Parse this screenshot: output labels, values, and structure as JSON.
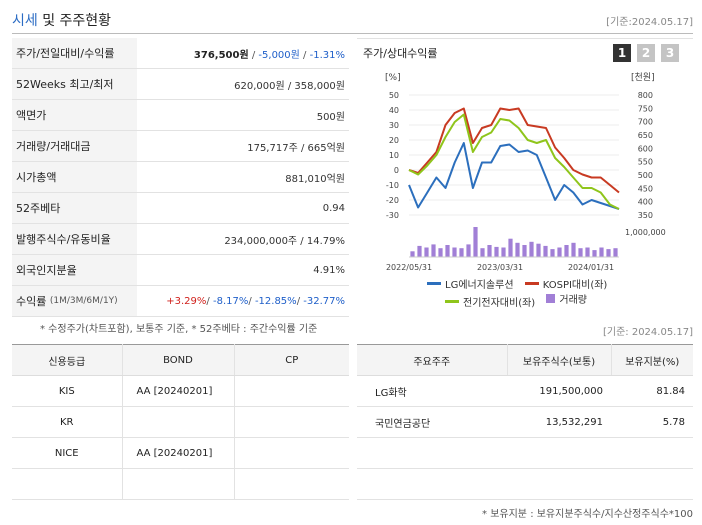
{
  "header": {
    "title_accent": "시세",
    "title_rest": " 및 주주현황",
    "base_date": "[기준:2024.05.17]"
  },
  "info": {
    "price_label": "주가/전일대비/수익률",
    "price": "376,500원",
    "change": "-5,000원",
    "change_rate": "-1.31%",
    "week52_label": "52Weeks 최고/최저",
    "week52_value": "620,000원 / 358,000원",
    "par_label": "액면가",
    "par_value": "500원",
    "volume_label": "거래량/거래대금",
    "volume_value": "175,717주 / 665억원",
    "mktcap_label": "시가총액",
    "mktcap_value": "881,010억원",
    "beta_label": "52주베타",
    "beta_value": "0.94",
    "shares_label": "발행주식수/유동비율",
    "shares_value": "234,000,000주 / 14.79%",
    "foreign_label": "외국인지분율",
    "foreign_value": "4.91%",
    "return_label": "수익률",
    "return_periods": "(1M/3M/6M/1Y)",
    "return_1m": "+3.29%",
    "return_3m": "-8.17%",
    "return_6m": "-12.85%",
    "return_1y": "-32.77%",
    "footnote": "* 수정주가(차트포함), 보통주 기준, * 52주베타 : 주간수익률 기준"
  },
  "chart_panel": {
    "title": "주가/상대수익률",
    "buttons": [
      "1",
      "2",
      "3"
    ],
    "base_date": "[기준: 2024.05.17]"
  },
  "chart_data": {
    "type": "line",
    "left_axis_unit": "[%]",
    "right_axis_unit": "[천원]",
    "left_ticks": [
      50,
      40,
      30,
      20,
      10,
      0,
      -10,
      -20,
      -30
    ],
    "right_ticks": [
      800,
      750,
      700,
      650,
      600,
      550,
      500,
      450,
      400,
      350
    ],
    "x_labels": [
      "2022/05/31",
      "2023/03/31",
      "2024/01/31"
    ],
    "volume_label": "1,000,000",
    "series": [
      {
        "name": "LG에너지솔루션",
        "color": "#2c6fbd",
        "axis": "left",
        "values": [
          -10,
          -25,
          -15,
          -5,
          -12,
          5,
          18,
          -12,
          5,
          5,
          16,
          17,
          12,
          13,
          10,
          -5,
          -20,
          -10,
          -15,
          -23,
          -20,
          -22,
          -24,
          -26
        ]
      },
      {
        "name": "KOSPI대비(좌)",
        "color": "#c83a22",
        "axis": "left",
        "values": [
          0,
          -2,
          5,
          12,
          30,
          38,
          41,
          18,
          28,
          30,
          41,
          40,
          41,
          30,
          29,
          28,
          15,
          8,
          0,
          -3,
          -5,
          -5,
          -10,
          -15
        ]
      },
      {
        "name": "전기전자대비(좌)",
        "color": "#8fc51b",
        "axis": "left",
        "values": [
          0,
          -3,
          3,
          10,
          22,
          32,
          37,
          12,
          22,
          25,
          34,
          33,
          28,
          20,
          18,
          20,
          8,
          2,
          -5,
          -12,
          -12,
          -15,
          -23,
          -26
        ]
      }
    ],
    "volume": {
      "name": "거래량",
      "color": "#a17fd6",
      "values": [
        18,
        35,
        30,
        40,
        28,
        38,
        30,
        28,
        40,
        95,
        28,
        38,
        32,
        30,
        58,
        45,
        38,
        48,
        42,
        35,
        25,
        30,
        38,
        45,
        28,
        30,
        22,
        30,
        25,
        28
      ]
    }
  },
  "credit": {
    "headers": [
      "신용등급",
      "BOND",
      "CP"
    ],
    "rows": [
      [
        "KIS",
        "AA [20240201]",
        ""
      ],
      [
        "KR",
        "",
        ""
      ],
      [
        "NICE",
        "AA [20240201]",
        ""
      ],
      [
        "",
        "",
        ""
      ]
    ]
  },
  "holders": {
    "headers": [
      "주요주주",
      "보유주식수(보통)",
      "보유지분(%)"
    ],
    "rows": [
      [
        "LG화학",
        "191,500,000",
        "81.84"
      ],
      [
        "국민연금공단",
        "13,532,291",
        "5.78"
      ],
      [
        "",
        "",
        ""
      ],
      [
        "",
        "",
        ""
      ]
    ],
    "footnote": "* 보유지분 : 보유지분주식수/지수산정주식수*100"
  }
}
